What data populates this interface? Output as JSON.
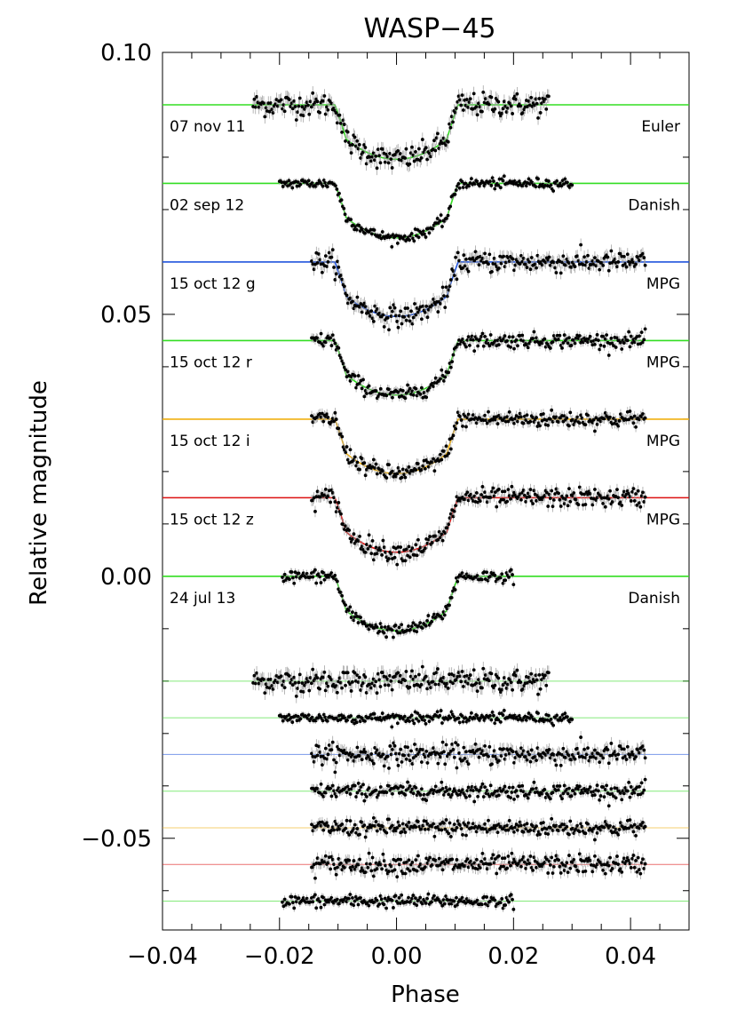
{
  "chart_data": {
    "type": "scatter",
    "title": "WASP−45",
    "xlabel": "Phase",
    "ylabel": "Relative magnitude",
    "xlim": [
      -0.04,
      0.05
    ],
    "ylim": [
      -0.0675,
      0.1
    ],
    "xticks": [
      -0.04,
      -0.02,
      0.0,
      0.02,
      0.04
    ],
    "xtick_labels": [
      "−0.04",
      "−0.02",
      "0.00",
      "0.02",
      "0.04"
    ],
    "yticks": [
      0.1,
      0.05,
      0.0,
      -0.05
    ],
    "ytick_labels": [
      "0.10",
      "0.05",
      "0.00",
      "−0.05"
    ],
    "grid": false,
    "model": {
      "half_duration": 0.0105,
      "full_depth": 0.0104
    },
    "light_curves": [
      {
        "date": "07 nov 11",
        "telescope": "Euler",
        "color": "#33dd22",
        "offset": 0.09,
        "residual_offset": -0.02,
        "x_range": [
          -0.0245,
          0.026
        ],
        "noise": 0.0011
      },
      {
        "date": "02 sep 12",
        "telescope": "Danish",
        "color": "#33dd22",
        "offset": 0.075,
        "residual_offset": -0.027,
        "x_range": [
          -0.02,
          0.03
        ],
        "noise": 0.0005
      },
      {
        "date": "15 oct 12 g",
        "telescope": "MPG",
        "color": "#2255dd",
        "offset": 0.06,
        "residual_offset": -0.034,
        "x_range": [
          -0.0145,
          0.0425
        ],
        "noise": 0.001
      },
      {
        "date": "15 oct 12 r",
        "telescope": "MPG",
        "color": "#33dd22",
        "offset": 0.045,
        "residual_offset": -0.041,
        "x_range": [
          -0.0145,
          0.0425
        ],
        "noise": 0.0007
      },
      {
        "date": "15 oct 12 i",
        "telescope": "MPG",
        "color": "#f0b010",
        "offset": 0.03,
        "residual_offset": -0.048,
        "x_range": [
          -0.0145,
          0.0425
        ],
        "noise": 0.0008
      },
      {
        "date": "15 oct 12 z",
        "telescope": "MPG",
        "color": "#dd1111",
        "offset": 0.015,
        "residual_offset": -0.055,
        "x_range": [
          -0.0145,
          0.0425
        ],
        "noise": 0.0009
      },
      {
        "date": "24 jul 13",
        "telescope": "Danish",
        "color": "#33dd22",
        "offset": 0.0,
        "residual_offset": -0.062,
        "x_range": [
          -0.0195,
          0.02
        ],
        "noise": 0.0006
      }
    ]
  }
}
